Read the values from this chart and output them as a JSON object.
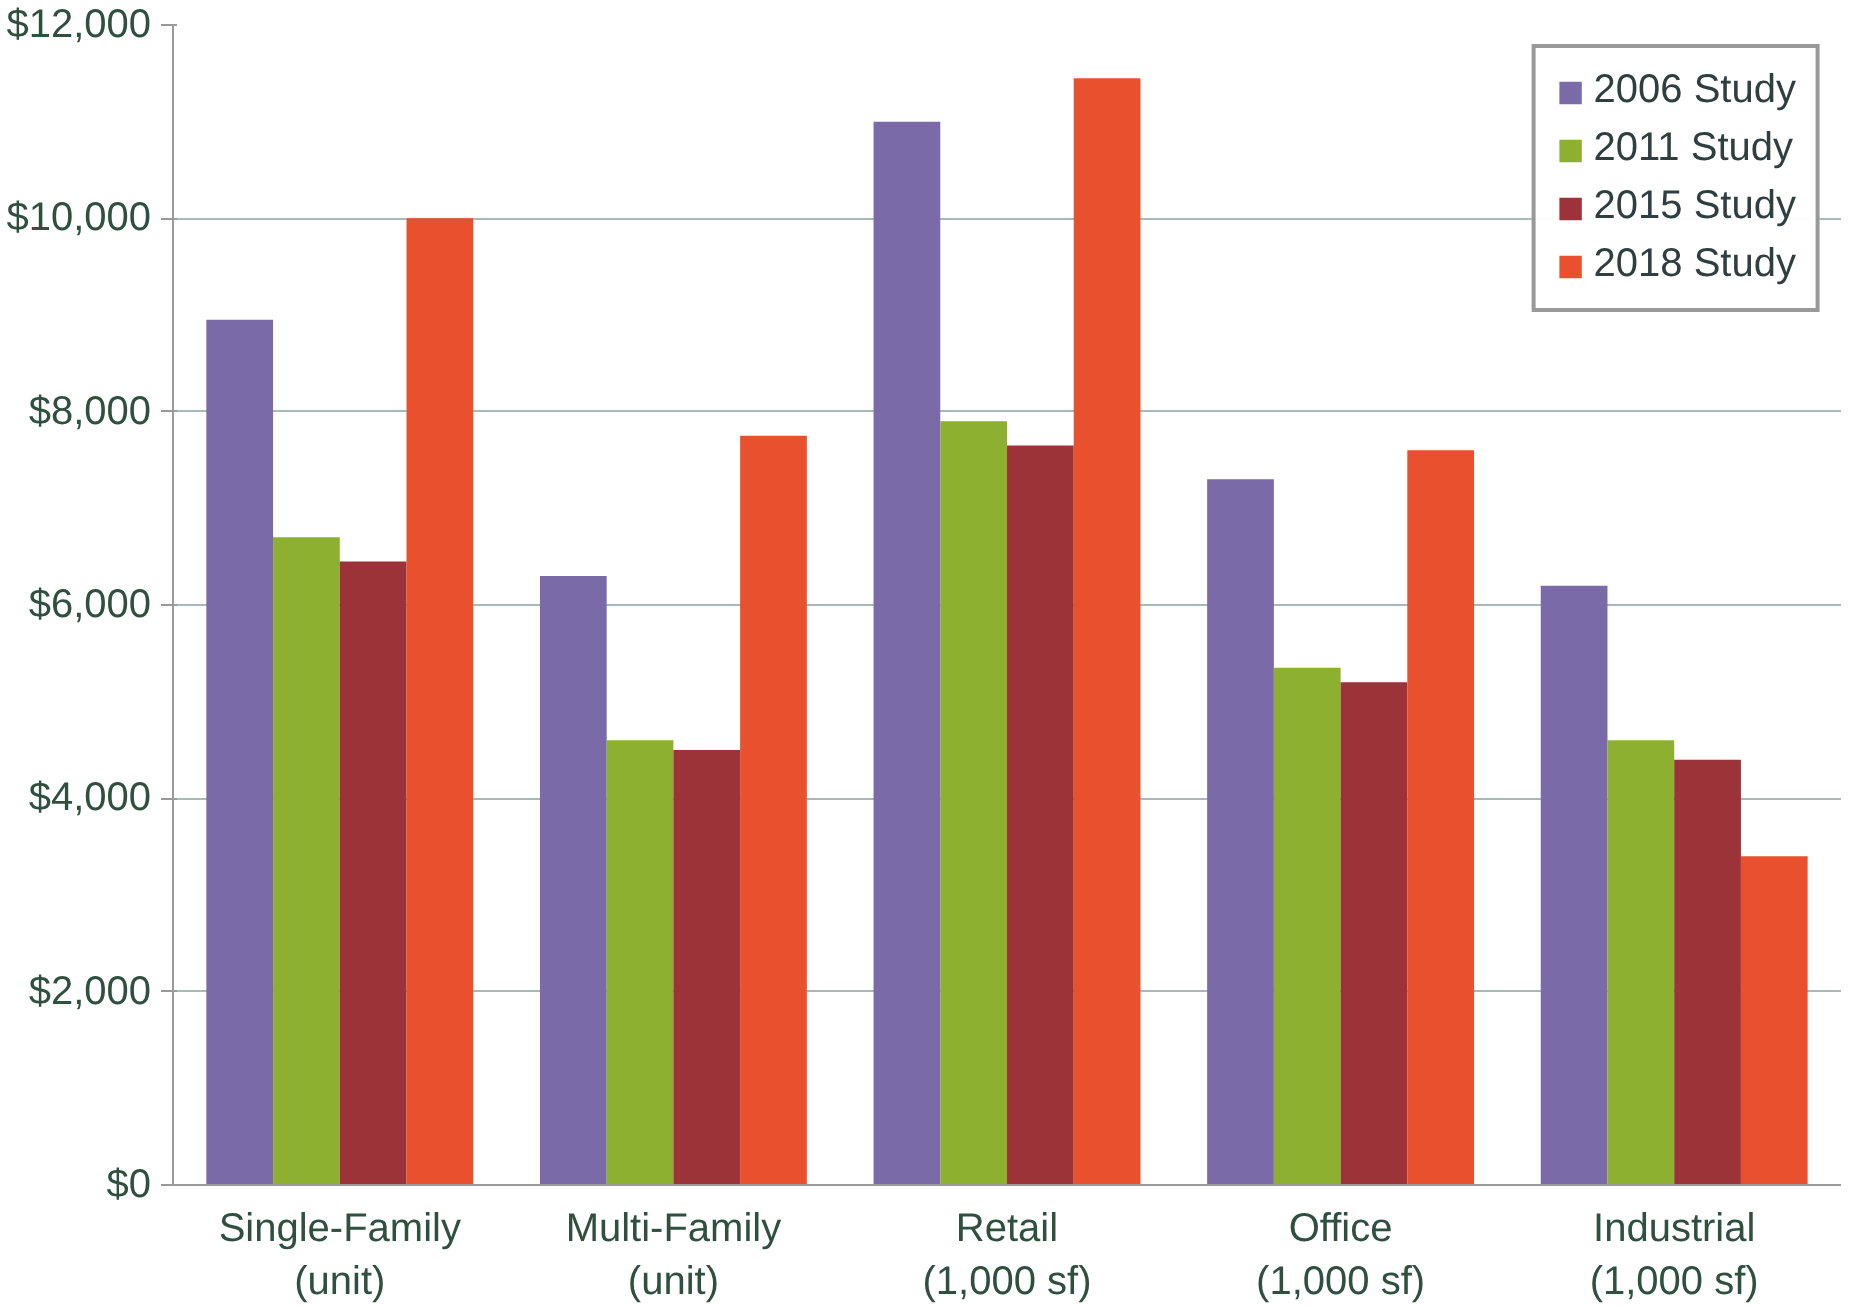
{
  "chart_data": {
    "type": "bar",
    "categories": [
      "Single-Family\n(unit)",
      "Multi-Family\n(unit)",
      "Retail\n(1,000 sf)",
      "Office\n(1,000 sf)",
      "Industrial\n(1,000 sf)"
    ],
    "series": [
      {
        "name": "2006 Study",
        "color": "#7b6aa8",
        "values": [
          8950,
          6300,
          11000,
          7300,
          6200
        ]
      },
      {
        "name": "2011 Study",
        "color": "#8db030",
        "values": [
          6700,
          4600,
          7900,
          5350,
          4600
        ]
      },
      {
        "name": "2015 Study",
        "color": "#9b3338",
        "values": [
          6450,
          4500,
          7650,
          5200,
          4400
        ]
      },
      {
        "name": "2018 Study",
        "color": "#e8502e",
        "values": [
          10000,
          7750,
          11450,
          7600,
          3400
        ]
      }
    ],
    "ylim": [
      0,
      12000
    ],
    "yticks": [
      {
        "value": 0,
        "label": "$0"
      },
      {
        "value": 2000,
        "label": "$2,000"
      },
      {
        "value": 4000,
        "label": "$4,000"
      },
      {
        "value": 6000,
        "label": "$6,000"
      },
      {
        "value": 8000,
        "label": "$8,000"
      },
      {
        "value": 10000,
        "label": "$10,000"
      },
      {
        "value": 12000,
        "label": "$12,000"
      }
    ],
    "grid": "y",
    "legend": "top right"
  }
}
